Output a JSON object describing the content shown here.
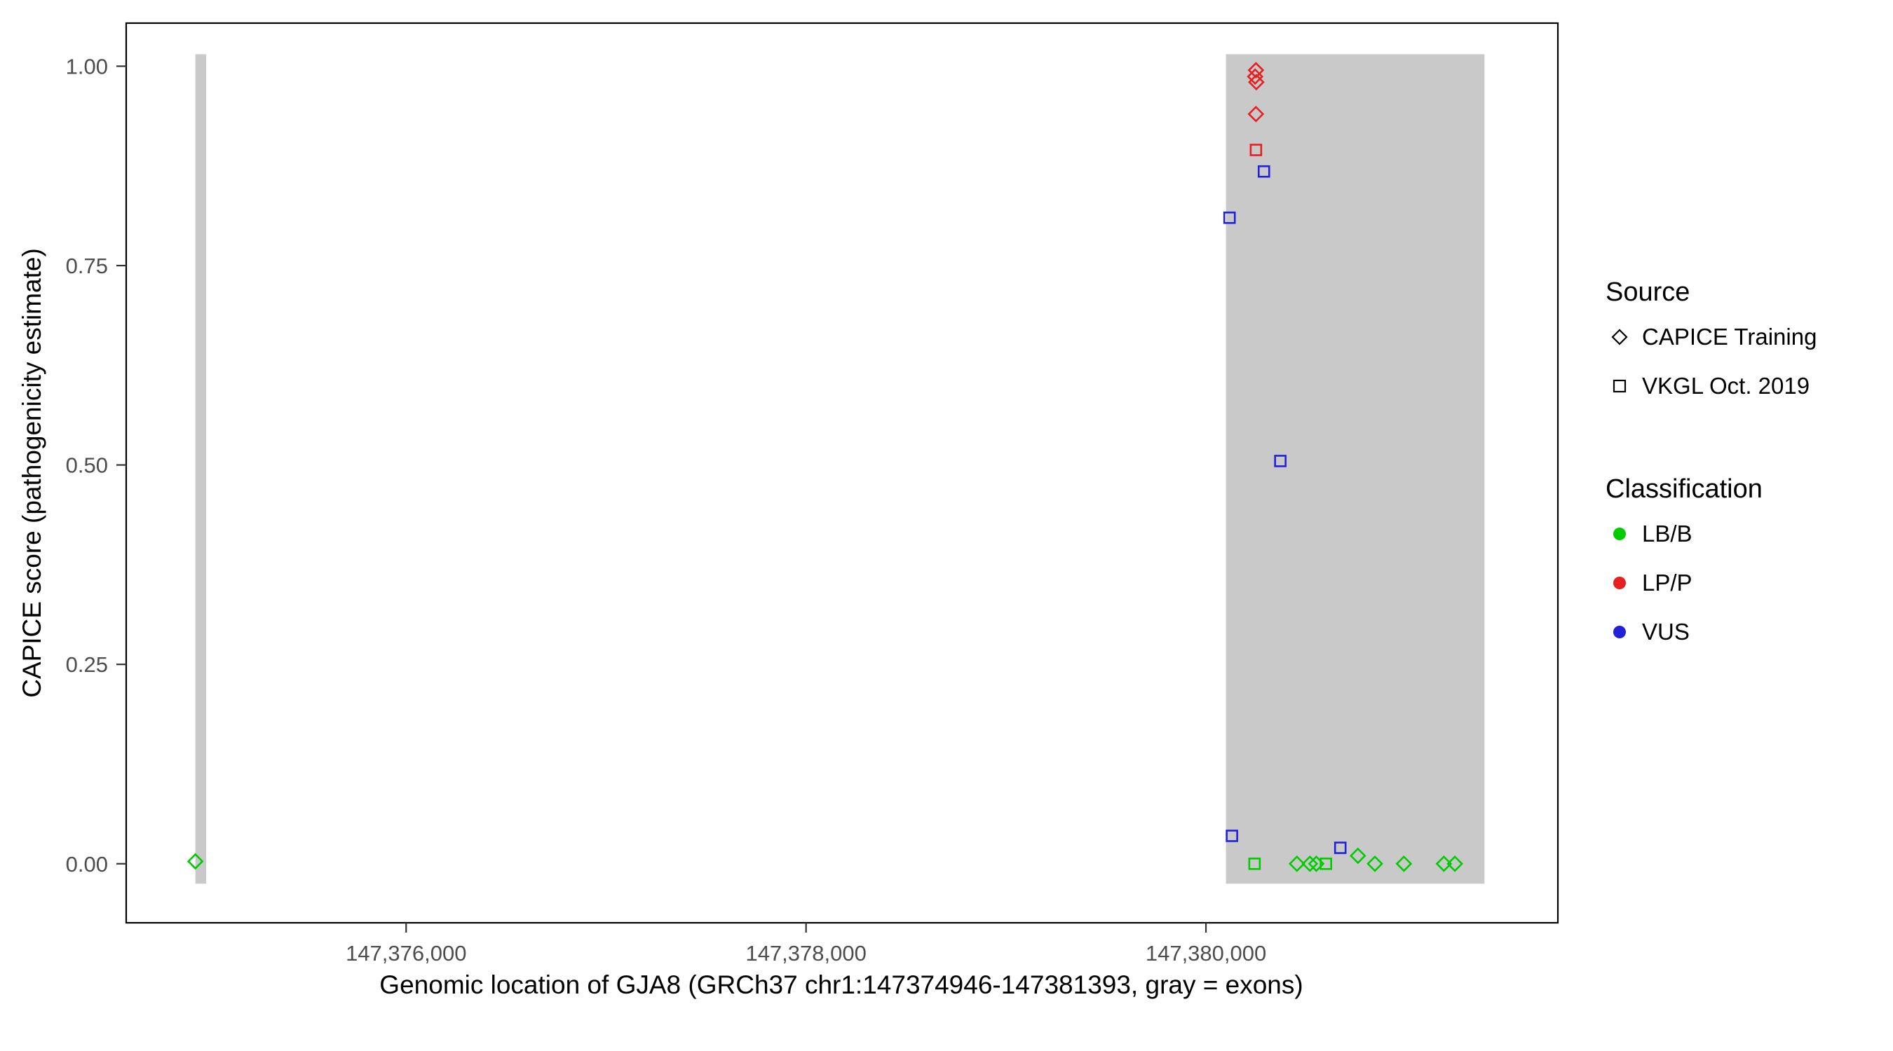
{
  "chart_data": {
    "type": "scatter",
    "title": "",
    "xlabel": "Genomic location of GJA8 (GRCh37 chr1:147374946-147381393, gray = exons)",
    "ylabel": "CAPICE score (pathogenicity estimate)",
    "xlim": [
      147374600,
      147381760
    ],
    "ylim": [
      -0.074,
      1.054
    ],
    "grid": "off",
    "x_ticks": [
      {
        "value": 147376000,
        "label": "147,376,000"
      },
      {
        "value": 147378000,
        "label": "147,378,000"
      },
      {
        "value": 147380000,
        "label": "147,380,000"
      }
    ],
    "y_ticks": [
      {
        "value": 0.0,
        "label": "0.00"
      },
      {
        "value": 0.25,
        "label": "0.25"
      },
      {
        "value": 0.5,
        "label": "0.50"
      },
      {
        "value": 0.75,
        "label": "0.75"
      },
      {
        "value": 1.0,
        "label": "1.00"
      }
    ],
    "exon_color": "#c9c9c9",
    "exons": [
      {
        "start": 147374946,
        "end": 147375000
      },
      {
        "start": 147380100,
        "end": 147381393
      }
    ],
    "classification_colors": {
      "LB/B": "#00cc00",
      "LP/P": "#e62020",
      "VUS": "#2121dd"
    },
    "source_shapes": {
      "CAPICE Training": "diamond",
      "VKGL Oct. 2019": "square"
    },
    "points": [
      {
        "x": 147374946,
        "y": 0.003,
        "source": "CAPICE Training",
        "classification": "LB/B"
      },
      {
        "x": 147380250,
        "y": 0.995,
        "source": "CAPICE Training",
        "classification": "LP/P"
      },
      {
        "x": 147380246,
        "y": 0.987,
        "source": "CAPICE Training",
        "classification": "LP/P"
      },
      {
        "x": 147380252,
        "y": 0.98,
        "source": "CAPICE Training",
        "classification": "LP/P"
      },
      {
        "x": 147380250,
        "y": 0.94,
        "source": "CAPICE Training",
        "classification": "LP/P"
      },
      {
        "x": 147380250,
        "y": 0.895,
        "source": "VKGL Oct. 2019",
        "classification": "LP/P"
      },
      {
        "x": 147380290,
        "y": 0.868,
        "source": "VKGL Oct. 2019",
        "classification": "VUS"
      },
      {
        "x": 147380118,
        "y": 0.81,
        "source": "VKGL Oct. 2019",
        "classification": "VUS"
      },
      {
        "x": 147380372,
        "y": 0.505,
        "source": "VKGL Oct. 2019",
        "classification": "VUS"
      },
      {
        "x": 147380130,
        "y": 0.035,
        "source": "VKGL Oct. 2019",
        "classification": "VUS"
      },
      {
        "x": 147380672,
        "y": 0.02,
        "source": "VKGL Oct. 2019",
        "classification": "VUS"
      },
      {
        "x": 147380243,
        "y": 0.0,
        "source": "VKGL Oct. 2019",
        "classification": "LB/B"
      },
      {
        "x": 147380600,
        "y": 0.0,
        "source": "VKGL Oct. 2019",
        "classification": "LB/B"
      },
      {
        "x": 147380455,
        "y": 0.0,
        "source": "CAPICE Training",
        "classification": "LB/B"
      },
      {
        "x": 147380520,
        "y": 0.0,
        "source": "CAPICE Training",
        "classification": "LB/B"
      },
      {
        "x": 147380552,
        "y": 0.0,
        "source": "CAPICE Training",
        "classification": "LB/B"
      },
      {
        "x": 147380760,
        "y": 0.01,
        "source": "CAPICE Training",
        "classification": "LB/B"
      },
      {
        "x": 147380845,
        "y": 0.0,
        "source": "CAPICE Training",
        "classification": "LB/B"
      },
      {
        "x": 147380990,
        "y": 0.0,
        "source": "CAPICE Training",
        "classification": "LB/B"
      },
      {
        "x": 147381190,
        "y": 0.0,
        "source": "CAPICE Training",
        "classification": "LB/B"
      },
      {
        "x": 147381245,
        "y": 0.0,
        "source": "CAPICE Training",
        "classification": "LB/B"
      }
    ]
  },
  "legend": {
    "source": {
      "title": "Source",
      "items": [
        {
          "label": "CAPICE Training",
          "shape": "diamond"
        },
        {
          "label": "VKGL Oct. 2019",
          "shape": "square"
        }
      ]
    },
    "classification": {
      "title": "Classification",
      "items": [
        {
          "label": "LB/B",
          "color": "#00cc00"
        },
        {
          "label": "LP/P",
          "color": "#e62020"
        },
        {
          "label": "VUS",
          "color": "#2121dd"
        }
      ]
    }
  }
}
